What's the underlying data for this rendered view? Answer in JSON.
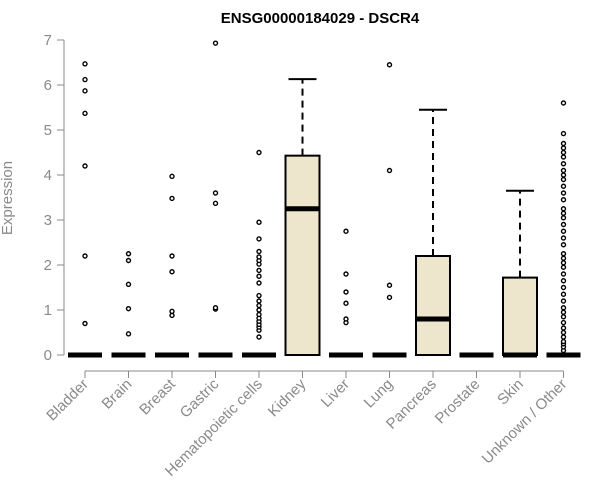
{
  "chart_data": {
    "type": "box",
    "title": "ENSG00000184029 - DSCR4",
    "xlabel": "",
    "ylabel": "Expression",
    "ylim": [
      0,
      7
    ],
    "y_ticks": [
      0,
      1,
      2,
      3,
      4,
      5,
      6,
      7
    ],
    "categories": [
      "Bladder",
      "Brain",
      "Breast",
      "Gastric",
      "Hematopoietic cells",
      "Kidney",
      "Liver",
      "Lung",
      "Pancreas",
      "Prostate",
      "Skin",
      "Unknown / Other"
    ],
    "boxes": [
      {
        "category": "Bladder",
        "min": 0,
        "q1": 0,
        "median": 0,
        "q3": 0,
        "max": 0,
        "outliers": [
          0.7,
          2.2,
          4.2,
          5.37,
          5.87,
          6.12,
          6.47
        ]
      },
      {
        "category": "Brain",
        "min": 0,
        "q1": 0,
        "median": 0,
        "q3": 0,
        "max": 0,
        "outliers": [
          0.47,
          1.03,
          1.57,
          2.1,
          2.25
        ]
      },
      {
        "category": "Breast",
        "min": 0,
        "q1": 0,
        "median": 0,
        "q3": 0,
        "max": 0,
        "outliers": [
          0.88,
          0.97,
          1.85,
          2.2,
          3.48,
          3.97
        ]
      },
      {
        "category": "Gastric",
        "min": 0,
        "q1": 0,
        "median": 0,
        "q3": 0,
        "max": 0,
        "outliers": [
          1.02,
          1.05,
          3.37,
          3.6,
          6.93
        ]
      },
      {
        "category": "Hematopoietic cells",
        "min": 0,
        "q1": 0,
        "median": 0,
        "q3": 0,
        "max": 0,
        "outliers": [
          0.4,
          0.55,
          0.62,
          0.68,
          0.75,
          0.82,
          0.9,
          1.0,
          1.1,
          1.2,
          1.32,
          1.6,
          1.75,
          1.88,
          2.02,
          2.1,
          2.18,
          2.3,
          2.58,
          2.95,
          4.5
        ]
      },
      {
        "category": "Kidney",
        "min": 0,
        "q1": 0,
        "median": 3.25,
        "q3": 4.43,
        "max": 6.13,
        "outliers": []
      },
      {
        "category": "Liver",
        "min": 0,
        "q1": 0,
        "median": 0,
        "q3": 0,
        "max": 0,
        "outliers": [
          0.72,
          0.8,
          1.15,
          1.4,
          1.8,
          2.75
        ]
      },
      {
        "category": "Lung",
        "min": 0,
        "q1": 0,
        "median": 0,
        "q3": 0,
        "max": 0,
        "outliers": [
          1.28,
          1.55,
          4.1,
          6.45
        ]
      },
      {
        "category": "Pancreas",
        "min": 0,
        "q1": 0,
        "median": 0.8,
        "q3": 2.2,
        "max": 5.45,
        "outliers": []
      },
      {
        "category": "Prostate",
        "min": 0,
        "q1": 0,
        "median": 0,
        "q3": 0,
        "max": 0,
        "outliers": []
      },
      {
        "category": "Skin",
        "min": 0,
        "q1": 0,
        "median": 0,
        "q3": 1.72,
        "max": 3.65,
        "outliers": []
      },
      {
        "category": "Unknown / Other",
        "min": 0,
        "q1": 0,
        "median": 0,
        "q3": 0,
        "max": 0,
        "outliers": [
          0.1,
          0.18,
          0.25,
          0.3,
          0.4,
          0.5,
          0.6,
          0.72,
          0.85,
          0.95,
          1.05,
          1.2,
          1.35,
          1.5,
          1.65,
          1.8,
          1.95,
          2.05,
          2.15,
          2.25,
          2.45,
          2.6,
          2.75,
          2.9,
          3.05,
          3.15,
          3.25,
          3.45,
          3.6,
          3.75,
          3.9,
          4.0,
          4.1,
          4.25,
          4.4,
          4.5,
          4.6,
          4.7,
          4.92,
          5.6
        ]
      }
    ],
    "grid": false,
    "legend": "none",
    "colors": {
      "box_fill": "#ede6cc",
      "box_stroke": "#000000",
      "median": "#000000",
      "axis": "#8a8a8a",
      "axis_text": "#8a8a8a",
      "title": "#000000",
      "outlier": "#000000"
    }
  }
}
